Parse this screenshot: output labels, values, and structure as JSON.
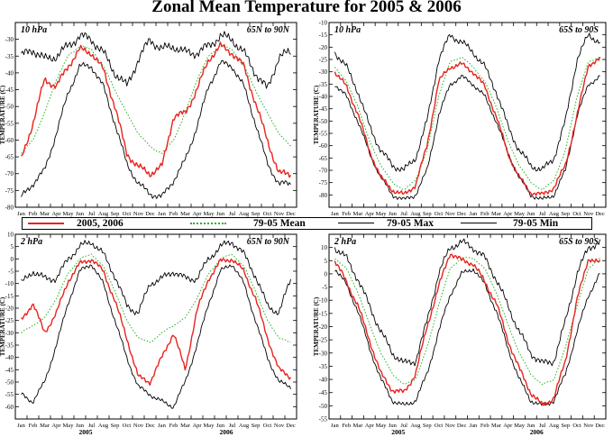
{
  "title": "Zonal Mean Temperature for 2005 & 2006",
  "legend": {
    "obs_label": "2005, 2006",
    "mean_label": "79-05 Mean",
    "max_label": "79-05 Max",
    "min_label": "79-05 Min"
  },
  "colors": {
    "obs": "#e8231e",
    "mean": "#22b422",
    "envelope": "#000000"
  },
  "months": [
    "Jan",
    "Feb",
    "Mar",
    "Apr",
    "May",
    "Jun",
    "Jul",
    "Aug",
    "Sep",
    "Oct",
    "Nov",
    "Dec",
    "Jan",
    "Feb",
    "Mar",
    "Apr",
    "May",
    "Jun",
    "Jul",
    "Aug",
    "Sep",
    "Oct",
    "Nov",
    "Dec"
  ],
  "years": [
    "2005",
    "2006"
  ],
  "chart_data": [
    {
      "type": "line",
      "panel": "top-left",
      "level_label": "10 hPa",
      "region_label": "65N to 90N",
      "ylabel": "TEMPERATURE (C)",
      "ylim": [
        -80,
        -25
      ],
      "yticks": [
        -80,
        -75,
        -70,
        -65,
        -60,
        -55,
        -50,
        -45,
        -40,
        -35,
        -30
      ],
      "x_months": [
        0.5,
        1.5,
        2.5,
        3.5,
        4.5,
        5.5,
        6.5,
        7.5,
        8.5,
        9.5,
        10.5,
        11.5,
        12.5,
        13.5,
        14.5,
        15.5,
        16.5,
        17.5,
        18.5,
        19.5,
        20.5,
        21.5,
        22.5,
        23.5
      ],
      "series": [
        {
          "name": "79-05 Mean",
          "values": [
            -64,
            -60,
            -52,
            -42,
            -35,
            -32,
            -33,
            -38,
            -45,
            -52,
            -58,
            -62,
            -64,
            -60,
            -52,
            -42,
            -35,
            -32,
            -33,
            -38,
            -45,
            -52,
            -58,
            -62
          ]
        },
        {
          "name": "79-05 Max",
          "values": [
            -35,
            -33,
            -36,
            -35,
            -32,
            -29,
            -30,
            -34,
            -40,
            -44,
            -36,
            -30,
            -33,
            -32,
            -34,
            -34,
            -32,
            -29,
            -30,
            -34,
            -40,
            -45,
            -35,
            -34
          ]
        },
        {
          "name": "79-05 Min",
          "values": [
            -77,
            -73,
            -69,
            -58,
            -46,
            -38,
            -38,
            -44,
            -55,
            -67,
            -73,
            -76,
            -77,
            -72,
            -66,
            -56,
            -44,
            -37,
            -38,
            -44,
            -55,
            -67,
            -73,
            -73
          ]
        },
        {
          "name": "2005, 2006",
          "values": [
            -66,
            -55,
            -42,
            -44,
            -38,
            -33,
            -34,
            -39,
            -50,
            -64,
            -68,
            -70,
            -68,
            -53,
            -52,
            -45,
            -36,
            -32,
            -34,
            -38,
            -49,
            -60,
            -70,
            -70
          ]
        }
      ]
    },
    {
      "type": "line",
      "panel": "top-right",
      "level_label": "10 hPa",
      "region_label": "65S to 90S",
      "ylabel": "TEMPERATURE (C)",
      "ylim": [
        -85,
        -10
      ],
      "yticks": [
        -80,
        -75,
        -70,
        -65,
        -60,
        -55,
        -50,
        -45,
        -40,
        -35,
        -30,
        -25,
        -20,
        -15,
        -10
      ],
      "x_months": [
        0.5,
        1.5,
        2.5,
        3.5,
        4.5,
        5.5,
        6.5,
        7.5,
        8.5,
        9.5,
        10.5,
        11.5,
        12.5,
        13.5,
        14.5,
        15.5,
        16.5,
        17.5,
        18.5,
        19.5,
        20.5,
        21.5,
        22.5,
        23.5
      ],
      "series": [
        {
          "name": "79-05 Mean",
          "values": [
            -28,
            -34,
            -44,
            -58,
            -68,
            -75,
            -78,
            -74,
            -62,
            -40,
            -26,
            -24,
            -28,
            -34,
            -44,
            -58,
            -68,
            -75,
            -78,
            -74,
            -62,
            -40,
            -26,
            -24
          ]
        },
        {
          "name": "79-05 Max",
          "values": [
            -22,
            -28,
            -38,
            -52,
            -62,
            -68,
            -70,
            -65,
            -50,
            -25,
            -15,
            -18,
            -22,
            -28,
            -38,
            -52,
            -62,
            -68,
            -70,
            -65,
            -50,
            -25,
            -15,
            -18
          ]
        },
        {
          "name": "79-05 Min",
          "values": [
            -35,
            -40,
            -50,
            -63,
            -73,
            -80,
            -82,
            -80,
            -70,
            -48,
            -35,
            -32,
            -35,
            -40,
            -50,
            -63,
            -73,
            -80,
            -82,
            -80,
            -70,
            -48,
            -35,
            -32
          ]
        },
        {
          "name": "2005, 2006",
          "values": [
            -30,
            -36,
            -47,
            -62,
            -73,
            -78,
            -80,
            -76,
            -60,
            -34,
            -28,
            -27,
            -30,
            -36,
            -48,
            -63,
            -73,
            -79,
            -80,
            -77,
            -68,
            -48,
            -27,
            -25
          ]
        }
      ]
    },
    {
      "type": "line",
      "panel": "bottom-left",
      "level_label": "2 hPa",
      "region_label": "65N to 90N",
      "ylabel": "TEMPERATURE (C)",
      "ylim": [
        -65,
        10
      ],
      "yticks": [
        -60,
        -55,
        -50,
        -45,
        -40,
        -35,
        -30,
        -25,
        -20,
        -15,
        -10,
        -5,
        0,
        5,
        10
      ],
      "x_months": [
        0.5,
        1.5,
        2.5,
        3.5,
        4.5,
        5.5,
        6.5,
        7.5,
        8.5,
        9.5,
        10.5,
        11.5,
        12.5,
        13.5,
        14.5,
        15.5,
        16.5,
        17.5,
        18.5,
        19.5,
        20.5,
        21.5,
        22.5,
        23.5
      ],
      "series": [
        {
          "name": "79-05 Mean",
          "values": [
            -30,
            -27,
            -24,
            -16,
            -6,
            0,
            2,
            -3,
            -13,
            -25,
            -32,
            -34,
            -30,
            -27,
            -24,
            -16,
            -6,
            0,
            2,
            -3,
            -13,
            -25,
            -32,
            -34
          ]
        },
        {
          "name": "79-05 Max",
          "values": [
            -10,
            -5,
            -8,
            -8,
            0,
            5,
            7,
            2,
            -7,
            -19,
            -22,
            -10,
            -8,
            -5,
            -8,
            -8,
            0,
            5,
            7,
            2,
            -7,
            -19,
            -22,
            -8
          ]
        },
        {
          "name": "79-05 Min",
          "values": [
            -55,
            -58,
            -50,
            -35,
            -18,
            -5,
            -2,
            -10,
            -25,
            -40,
            -52,
            -55,
            -58,
            -60,
            -50,
            -35,
            -18,
            -5,
            -2,
            -10,
            -25,
            -40,
            -50,
            -52
          ]
        },
        {
          "name": "2005, 2006",
          "values": [
            -25,
            -18,
            -30,
            -22,
            -9,
            -2,
            0,
            -5,
            -17,
            -32,
            -48,
            -50,
            -40,
            -30,
            -45,
            -21,
            -8,
            -1,
            0,
            -5,
            -16,
            -32,
            -45,
            -48
          ]
        }
      ]
    },
    {
      "type": "line",
      "panel": "bottom-right",
      "level_label": "2 hPa",
      "region_label": "65S to 90S",
      "ylabel": "TEMPERATURE (C)",
      "ylim": [
        -55,
        15
      ],
      "yticks": [
        -55,
        -50,
        -45,
        -40,
        -35,
        -30,
        -25,
        -20,
        -15,
        -10,
        -5,
        0,
        5,
        10
      ],
      "x_months": [
        0.5,
        1.5,
        2.5,
        3.5,
        4.5,
        5.5,
        6.5,
        7.5,
        8.5,
        9.5,
        10.5,
        11.5,
        12.5,
        13.5,
        14.5,
        15.5,
        16.5,
        17.5,
        18.5,
        19.5,
        20.5,
        21.5,
        22.5,
        23.5
      ],
      "series": [
        {
          "name": "79-05 Mean",
          "values": [
            6,
            2,
            -7,
            -19,
            -30,
            -38,
            -42,
            -40,
            -28,
            -12,
            2,
            6,
            6,
            2,
            -7,
            -19,
            -30,
            -38,
            -42,
            -40,
            -28,
            -12,
            2,
            6
          ]
        },
        {
          "name": "79-05 Max",
          "values": [
            10,
            6,
            -2,
            -12,
            -22,
            -30,
            -34,
            -33,
            -18,
            0,
            10,
            12,
            10,
            6,
            -2,
            -12,
            -22,
            -30,
            -34,
            -33,
            -18,
            0,
            10,
            12
          ]
        },
        {
          "name": "79-05 Min",
          "values": [
            2,
            -4,
            -14,
            -28,
            -40,
            -48,
            -50,
            -48,
            -38,
            -22,
            -8,
            0,
            2,
            -4,
            -14,
            -28,
            -40,
            -48,
            -50,
            -48,
            -38,
            -22,
            -8,
            0
          ]
        },
        {
          "name": "2005, 2006",
          "values": [
            5,
            -3,
            -12,
            -25,
            -38,
            -44,
            -45,
            -38,
            -20,
            -5,
            8,
            5,
            4,
            -3,
            -11,
            -25,
            -36,
            -45,
            -50,
            -47,
            -33,
            -10,
            6,
            4
          ]
        }
      ]
    }
  ]
}
